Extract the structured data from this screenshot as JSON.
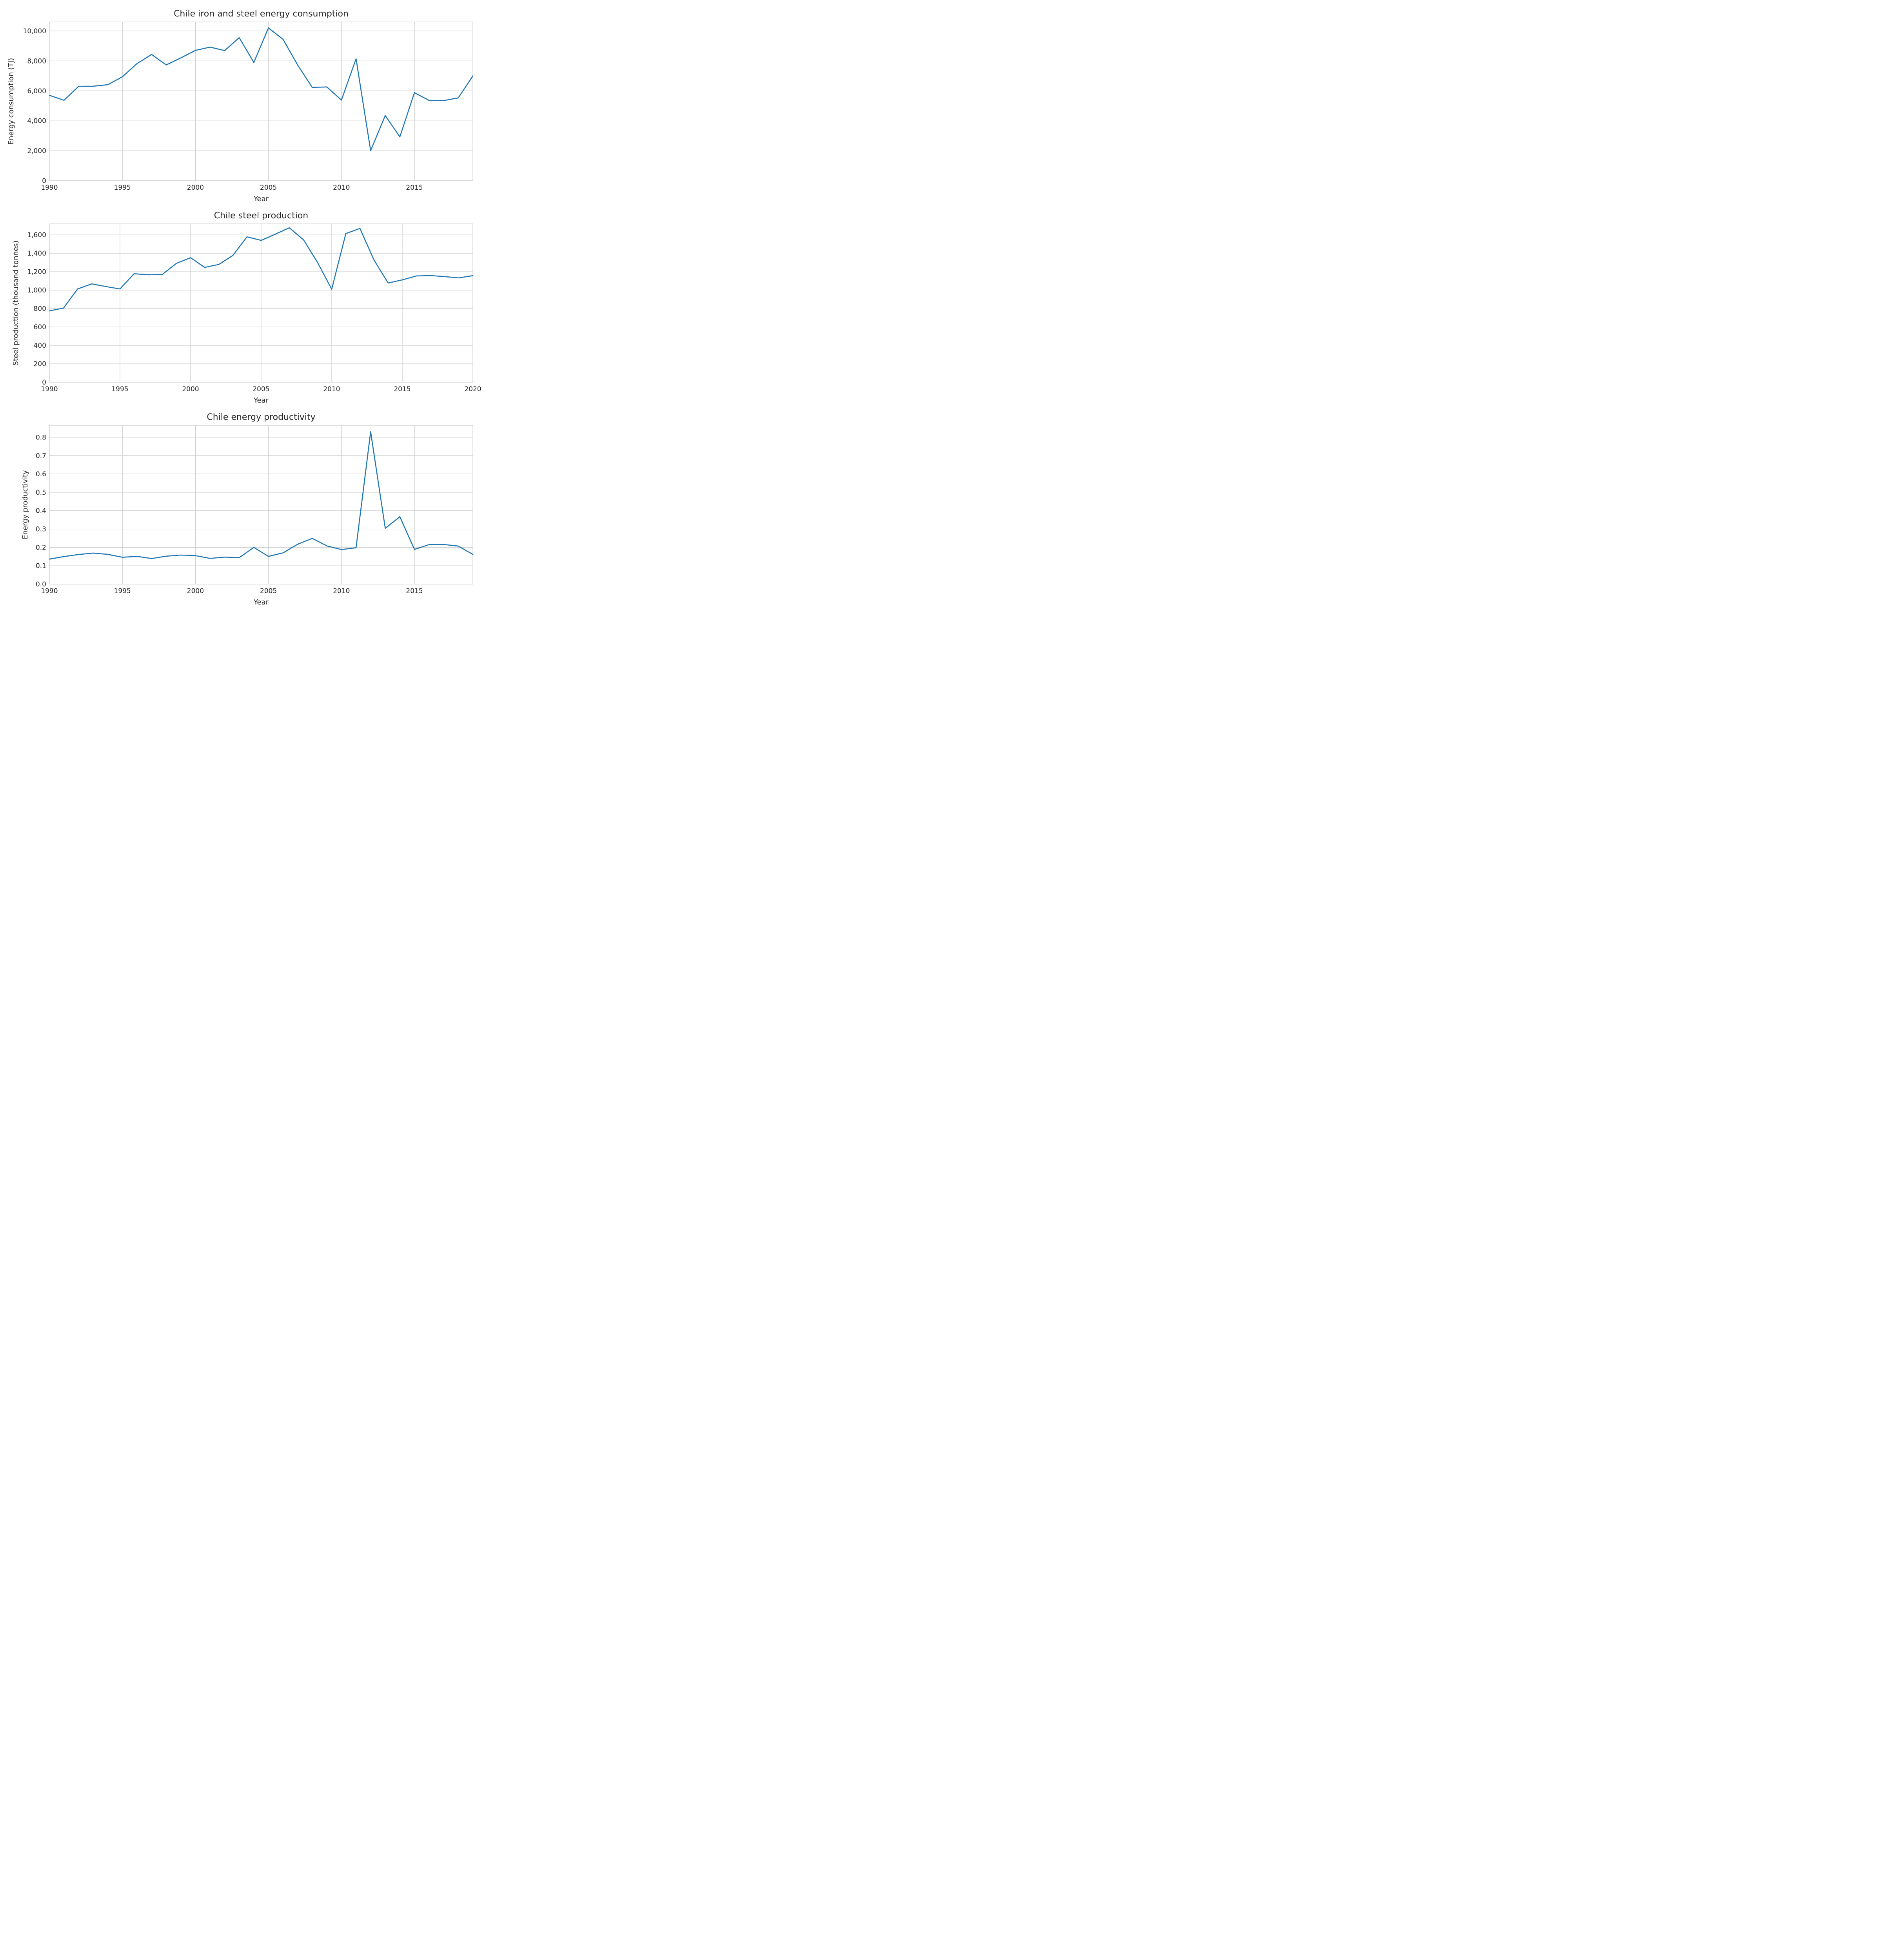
{
  "chart_data": [
    {
      "type": "line",
      "title": "Chile iron and steel energy consumption",
      "xlabel": "Year",
      "ylabel": "Energy consumption (TJ)",
      "xlim": [
        1990,
        2019
      ],
      "ylim": [
        0,
        10600
      ],
      "xticks": [
        1990,
        1995,
        2000,
        2005,
        2010,
        2015
      ],
      "xtick_labels": [
        "1990",
        "1995",
        "2000",
        "2005",
        "2010",
        "2015"
      ],
      "yticks": [
        0,
        2000,
        4000,
        6000,
        8000,
        10000
      ],
      "ytick_labels": [
        "0",
        "2,000",
        "4,000",
        "6,000",
        "8,000",
        "10,000"
      ],
      "grid": true,
      "color": "#1f77b4",
      "x": [
        1990,
        1991,
        1992,
        1993,
        1994,
        1995,
        1996,
        1997,
        1998,
        1999,
        2000,
        2001,
        2002,
        2003,
        2004,
        2005,
        2006,
        2007,
        2008,
        2009,
        2010,
        2011,
        2012,
        2013,
        2014,
        2015,
        2016,
        2017,
        2018,
        2019
      ],
      "y": [
        5700,
        5370,
        6300,
        6310,
        6410,
        6940,
        7820,
        8430,
        7730,
        8200,
        8700,
        8920,
        8690,
        9550,
        7900,
        10200,
        9440,
        7730,
        6230,
        6260,
        5380,
        8140,
        2010,
        4350,
        2930,
        5880,
        5360,
        5350,
        5530,
        7000
      ]
    },
    {
      "type": "line",
      "title": "Chile steel production",
      "xlabel": "Year",
      "ylabel": "Steel production (thousand tonnes)",
      "xlim": [
        1990,
        2020
      ],
      "ylim": [
        0,
        1720
      ],
      "xticks": [
        1990,
        1995,
        2000,
        2005,
        2010,
        2015,
        2020
      ],
      "xtick_labels": [
        "1990",
        "1995",
        "2000",
        "2005",
        "2010",
        "2015",
        "2020"
      ],
      "yticks": [
        0,
        200,
        400,
        600,
        800,
        1000,
        1200,
        1400,
        1600
      ],
      "ytick_labels": [
        "0",
        "200",
        "400",
        "600",
        "800",
        "1,000",
        "1,200",
        "1,400",
        "1,600"
      ],
      "grid": true,
      "color": "#1f77b4",
      "x": [
        1990,
        1991,
        1992,
        1993,
        1994,
        1995,
        1996,
        1997,
        1998,
        1999,
        2000,
        2001,
        2002,
        2003,
        2004,
        2005,
        2006,
        2007,
        2008,
        2009,
        2010,
        2011,
        2012,
        2013,
        2014,
        2015,
        2016,
        2017,
        2018,
        2019,
        2020
      ],
      "y": [
        775,
        805,
        1013,
        1068,
        1039,
        1013,
        1178,
        1167,
        1171,
        1291,
        1352,
        1247,
        1279,
        1377,
        1579,
        1540,
        1607,
        1677,
        1547,
        1300,
        1010,
        1614,
        1670,
        1326,
        1077,
        1111,
        1154,
        1158,
        1147,
        1133,
        1157
      ]
    },
    {
      "type": "line",
      "title": "Chile energy productivity",
      "xlabel": "Year",
      "ylabel": "Energy productivity",
      "xlim": [
        1990,
        2019
      ],
      "ylim": [
        0,
        0.865
      ],
      "xticks": [
        1990,
        1995,
        2000,
        2005,
        2010,
        2015
      ],
      "xtick_labels": [
        "1990",
        "1995",
        "2000",
        "2005",
        "2010",
        "2015"
      ],
      "yticks": [
        0,
        0.1,
        0.2,
        0.3,
        0.4,
        0.5,
        0.6,
        0.7,
        0.8
      ],
      "ytick_labels": [
        "0.0",
        "0.1",
        "0.2",
        "0.3",
        "0.4",
        "0.5",
        "0.6",
        "0.7",
        "0.8"
      ],
      "grid": true,
      "color": "#1f77b4",
      "x": [
        1990,
        1991,
        1992,
        1993,
        1994,
        1995,
        1996,
        1997,
        1998,
        1999,
        2000,
        2001,
        2002,
        2003,
        2004,
        2005,
        2006,
        2007,
        2008,
        2009,
        2010,
        2011,
        2012,
        2013,
        2014,
        2015,
        2016,
        2017,
        2018,
        2019
      ],
      "y": [
        0.136,
        0.15,
        0.161,
        0.169,
        0.162,
        0.146,
        0.151,
        0.139,
        0.152,
        0.158,
        0.155,
        0.14,
        0.147,
        0.144,
        0.2,
        0.151,
        0.17,
        0.217,
        0.249,
        0.208,
        0.188,
        0.198,
        0.83,
        0.304,
        0.367,
        0.189,
        0.215,
        0.216,
        0.207,
        0.162
      ]
    }
  ]
}
